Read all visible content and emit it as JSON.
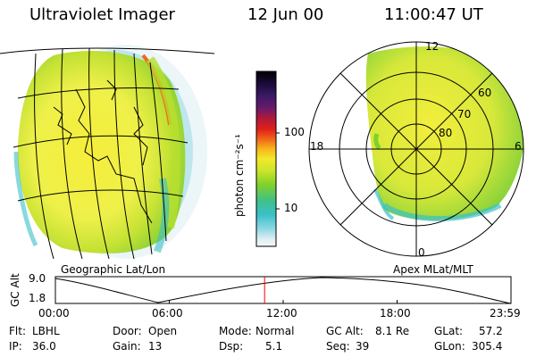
{
  "header": {
    "title": "Ultraviolet Imager",
    "date": "12 Jun 00",
    "time": "11:00:47 UT"
  },
  "colorbar": {
    "label": "photon cm⁻²s⁻¹",
    "ticks": [
      "100",
      "10"
    ],
    "colors": [
      "#000000",
      "#1a0b3a",
      "#3a1a66",
      "#6a1a6a",
      "#b01a3a",
      "#e0201a",
      "#f06a1a",
      "#f7b21a",
      "#f3e92a",
      "#c9e52a",
      "#7fd02a",
      "#3fc08a",
      "#3bc0c8",
      "#8ed8e4",
      "#dfeff2",
      "#f7f7f7"
    ]
  },
  "polar_plot": {
    "mlt_labels": [
      "12",
      "18",
      "6",
      "0"
    ],
    "lat_labels": [
      "60",
      "70",
      "80"
    ]
  },
  "timeline": {
    "left_caption": "Geographic Lat/Lon",
    "right_caption": "Apex MLat/MLT",
    "y_axis_label": "GC Alt",
    "y_ticks": [
      "9.0",
      "1.8"
    ],
    "x_ticks": [
      "00:00",
      "06:00",
      "12:00",
      "18:00",
      "23:59"
    ],
    "current_time_hours": 11.0131,
    "marker_color": "#ff0000"
  },
  "info": {
    "row1": [
      {
        "label": "Flt:",
        "value": "LBHL"
      },
      {
        "label": "Door:",
        "value": "Open"
      },
      {
        "label": "Mode:",
        "value": "Normal"
      },
      {
        "label": "GC Alt:",
        "value": "8.1 Re"
      },
      {
        "label": "GLat:",
        "value": "57.2"
      }
    ],
    "row2": [
      {
        "label": "IP:",
        "value": "36.0"
      },
      {
        "label": "Gain:",
        "value": "13"
      },
      {
        "label": "Dsp:",
        "value": "5.1"
      },
      {
        "label": "Seq:",
        "value": "39"
      },
      {
        "label": "GLon:",
        "value": "305.4"
      }
    ]
  }
}
